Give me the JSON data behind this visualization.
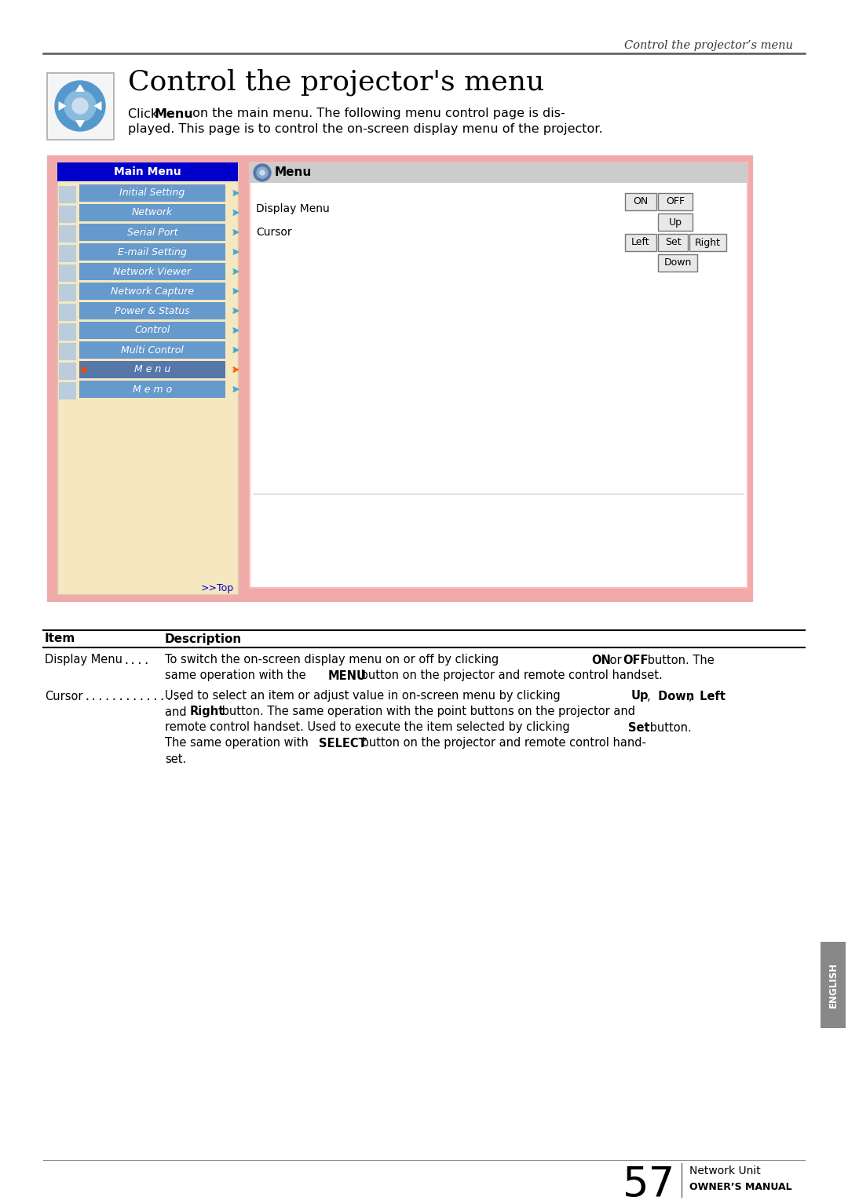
{
  "page_title_italic": "Control the projector’s menu",
  "main_title": "Control the projector's menu",
  "intro_bold": "Menu",
  "intro_text_line1a": "Click ",
  "intro_text_line1b": " on the main menu. The following menu control page is dis-",
  "intro_text_line2": "played. This page is to control the on-screen display menu of the projector.",
  "menu_items": [
    "Initial Setting",
    "Network",
    "Serial Port",
    "E-mail Setting",
    "Network Viewer",
    "Network Capture",
    "Power & Status",
    "Control",
    "Multi Control",
    "M e n u",
    "M e m o"
  ],
  "active_menu": "M e n u",
  "main_menu_bg": "#0000CC",
  "menu_item_bg": "#6699CC",
  "active_item_bg": "#5577AA",
  "sidebar_bg": "#F5E8C0",
  "outer_frame_bg": "#F0AAAA",
  "inner_right_bg": "#FFFFFF",
  "header_right_bg": "#DDDDDD",
  "button_bg": "#E8E8E8",
  "button_border": "#888888",
  "page_num": "57",
  "footer_line1": "Network Unit",
  "footer_line2": "OWNER’S MANUAL",
  "english_label": "ENGLISH",
  "background_color": "#FFFFFF",
  "top_header_text": "Control the projector’s menu",
  "item_col": "Item",
  "desc_col": "Description"
}
